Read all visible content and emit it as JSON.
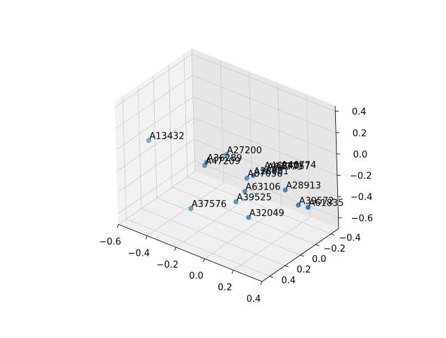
{
  "chart_data": {
    "type": "scatter",
    "projection": "3d",
    "title": "",
    "xlabel": "",
    "ylabel": "",
    "zlabel": "",
    "grid": true,
    "legend": "none",
    "xlim": [
      -0.6,
      0.4
    ],
    "ylim": [
      -0.5,
      0.5
    ],
    "zlim": [
      -0.7,
      0.45
    ],
    "xticks": [
      "−0.6",
      "−0.4",
      "−0.2",
      "0.0",
      "0.2",
      "0.4"
    ],
    "yticks": [
      "−0.4",
      "−0.2",
      "0.0",
      "0.2",
      "0.4"
    ],
    "zticks": [
      "−0.6",
      "−0.4",
      "−0.2",
      "0.0",
      "0.2",
      "0.4"
    ],
    "marker_color": "#1f77b4",
    "points": [
      {
        "label": "A27200",
        "x": 0.14,
        "y": 0.44,
        "z": 0.32
      },
      {
        "label": "A87056",
        "x": 0.27,
        "y": 0.42,
        "z": 0.16
      },
      {
        "label": "A46240",
        "x": 0.23,
        "y": 0.13,
        "z": 0.07
      },
      {
        "label": "A67779",
        "x": 0.23,
        "y": 0.09,
        "z": 0.04
      },
      {
        "label": "A67757",
        "x": 0.24,
        "y": 0.01,
        "z": 0.01
      },
      {
        "label": "A46774",
        "x": 0.25,
        "y": -0.05,
        "z": 0.0
      },
      {
        "label": "A13432",
        "x": -0.53,
        "y": 0.21,
        "z": -0.02
      },
      {
        "label": "A36289",
        "x": -0.1,
        "y": 0.26,
        "z": 0.03
      },
      {
        "label": "A47209",
        "x": -0.13,
        "y": 0.23,
        "z": -0.03
      },
      {
        "label": "A28981",
        "x": 0.1,
        "y": 0.03,
        "z": -0.1
      },
      {
        "label": "A63106",
        "x": 0.06,
        "y": 0.07,
        "z": -0.25
      },
      {
        "label": "A39525",
        "x": -0.01,
        "y": 0.06,
        "z": -0.39
      },
      {
        "label": "A28913",
        "x": 0.23,
        "y": -0.14,
        "z": -0.25
      },
      {
        "label": "A32049",
        "x": 0.07,
        "y": 0.05,
        "z": -0.5
      },
      {
        "label": "A39572",
        "x": 0.28,
        "y": -0.21,
        "z": -0.4
      },
      {
        "label": "A61835",
        "x": 0.31,
        "y": -0.28,
        "z": -0.44
      },
      {
        "label": "A37576",
        "x": -0.34,
        "y": 0.04,
        "z": -0.64
      }
    ]
  }
}
